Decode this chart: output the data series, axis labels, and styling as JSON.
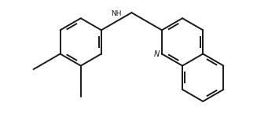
{
  "bg_color": "#ffffff",
  "line_color": "#1a1a1a",
  "lw": 1.4,
  "dbo": 0.055,
  "figsize": [
    3.27,
    1.45
  ],
  "dpi": 100
}
